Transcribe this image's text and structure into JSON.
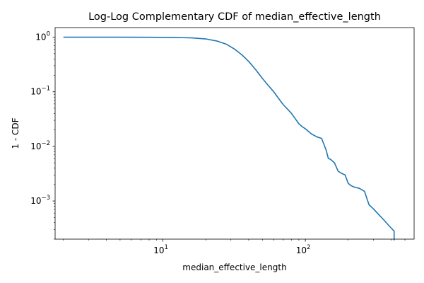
{
  "chart_data": {
    "type": "line",
    "title": "Log-Log Complementary CDF of median_effective_length",
    "xlabel": "median_effective_length",
    "ylabel": "1 - CDF",
    "xscale": "log",
    "yscale": "log",
    "xlim": [
      1.75,
      580
    ],
    "ylim": [
      0.0002,
      1.5
    ],
    "grid": false,
    "legend": "none",
    "x_ticks": [
      {
        "base": "10",
        "exp": "1",
        "value": 10
      },
      {
        "base": "10",
        "exp": "2",
        "value": 100
      }
    ],
    "y_ticks": [
      {
        "base": "10",
        "exp": "0",
        "value": 1
      },
      {
        "base": "10",
        "exp": "−1",
        "value": 0.1
      },
      {
        "base": "10",
        "exp": "−2",
        "value": 0.01
      },
      {
        "base": "10",
        "exp": "−3",
        "value": 0.001
      }
    ],
    "series": [
      {
        "color": "#1f77b4",
        "x": [
          2,
          3,
          5,
          8,
          12,
          16,
          20,
          24,
          28,
          32,
          36,
          40,
          45,
          50,
          55,
          60,
          65,
          70,
          75,
          80,
          85,
          90,
          95,
          100,
          110,
          120,
          130,
          140,
          145,
          150,
          160,
          170,
          180,
          190,
          200,
          210,
          220,
          240,
          260,
          280,
          300,
          320,
          350,
          380,
          400,
          420,
          420
        ],
        "y": [
          1.0,
          1.0,
          1.0,
          0.998,
          0.99,
          0.97,
          0.93,
          0.85,
          0.74,
          0.6,
          0.47,
          0.36,
          0.25,
          0.175,
          0.13,
          0.1,
          0.075,
          0.058,
          0.048,
          0.04,
          0.032,
          0.026,
          0.023,
          0.021,
          0.017,
          0.015,
          0.014,
          0.0085,
          0.006,
          0.0058,
          0.005,
          0.0035,
          0.0032,
          0.003,
          0.0021,
          0.0019,
          0.0018,
          0.0017,
          0.0015,
          0.00085,
          0.00072,
          0.0006,
          0.00047,
          0.00037,
          0.00032,
          0.00028,
          0.00019
        ]
      }
    ]
  }
}
